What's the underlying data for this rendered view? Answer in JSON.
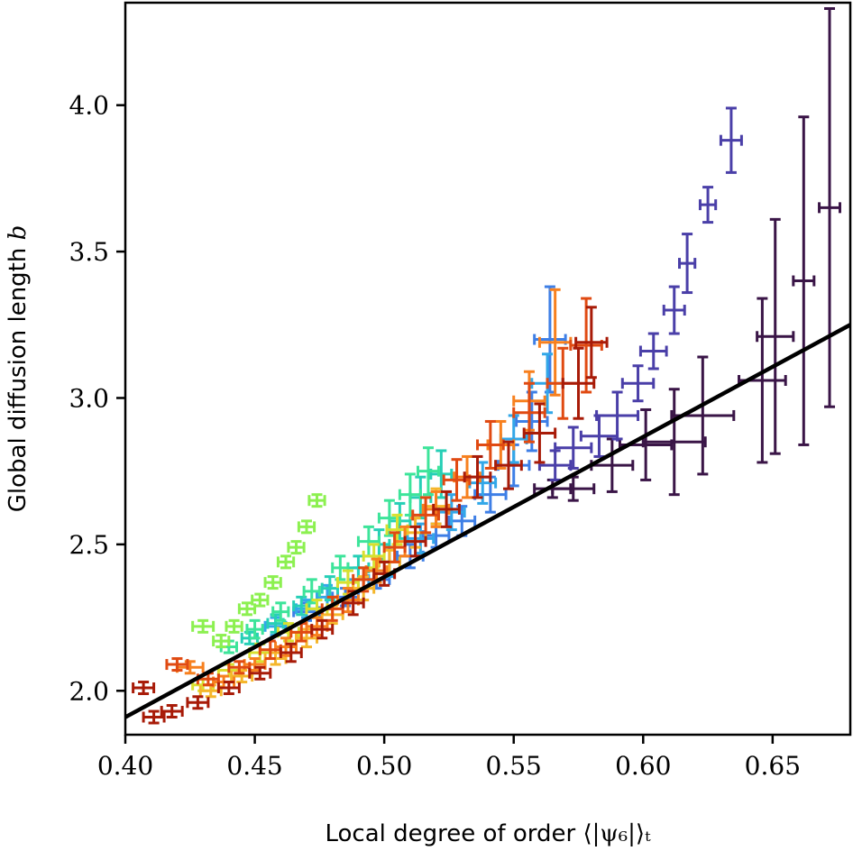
{
  "chart_data": {
    "type": "scatter",
    "title": "",
    "xlabel_text": "Local degree of order",
    "xlabel_math": "⟨|ψ₆|⟩ₜ",
    "ylabel_text": "Global diffusion length",
    "ylabel_math": "b",
    "xlim": [
      0.4,
      0.68
    ],
    "ylim": [
      1.85,
      4.35
    ],
    "xticks": [
      0.4,
      0.45,
      0.5,
      0.55,
      0.6,
      0.65
    ],
    "xtick_labels": [
      "0.40",
      "0.45",
      "0.50",
      "0.55",
      "0.60",
      "0.65"
    ],
    "yticks": [
      2.0,
      2.5,
      3.0,
      3.5,
      4.0
    ],
    "ytick_labels": [
      "2.0",
      "2.5",
      "3.0",
      "3.5",
      "4.0"
    ],
    "fit_line": {
      "x": [
        0.4,
        0.68
      ],
      "y": [
        1.91,
        3.25
      ],
      "color": "#000000"
    },
    "series": [
      {
        "name": "dark purple",
        "color": "#3a1547",
        "points": [
          [
            0.565,
            2.69,
            0.007,
            0.03
          ],
          [
            0.573,
            2.69,
            0.008,
            0.04
          ],
          [
            0.588,
            2.77,
            0.008,
            0.09
          ],
          [
            0.601,
            2.84,
            0.01,
            0.12
          ],
          [
            0.612,
            2.85,
            0.012,
            0.18
          ],
          [
            0.623,
            2.94,
            0.012,
            0.2
          ],
          [
            0.646,
            3.06,
            0.009,
            0.28
          ],
          [
            0.651,
            3.21,
            0.007,
            0.4
          ],
          [
            0.662,
            3.4,
            0.004,
            0.56
          ],
          [
            0.672,
            3.65,
            0.004,
            0.68
          ]
        ]
      },
      {
        "name": "indigo",
        "color": "#4a3fa8",
        "points": [
          [
            0.566,
            2.77,
            0.006,
            0.05
          ],
          [
            0.573,
            2.83,
            0.007,
            0.07
          ],
          [
            0.583,
            2.87,
            0.007,
            0.07
          ],
          [
            0.59,
            2.94,
            0.008,
            0.08
          ],
          [
            0.598,
            3.05,
            0.006,
            0.06
          ],
          [
            0.604,
            3.16,
            0.005,
            0.06
          ],
          [
            0.612,
            3.3,
            0.004,
            0.08
          ],
          [
            0.617,
            3.46,
            0.003,
            0.1
          ],
          [
            0.625,
            3.66,
            0.003,
            0.06
          ],
          [
            0.634,
            3.88,
            0.004,
            0.11
          ]
        ]
      },
      {
        "name": "blue",
        "color": "#3e7fe6",
        "points": [
          [
            0.47,
            2.27,
            0.005,
            0.03
          ],
          [
            0.485,
            2.32,
            0.005,
            0.03
          ],
          [
            0.497,
            2.38,
            0.005,
            0.03
          ],
          [
            0.51,
            2.46,
            0.005,
            0.04
          ],
          [
            0.52,
            2.53,
            0.005,
            0.04
          ],
          [
            0.53,
            2.58,
            0.005,
            0.05
          ],
          [
            0.541,
            2.67,
            0.006,
            0.06
          ],
          [
            0.55,
            2.77,
            0.006,
            0.07
          ],
          [
            0.557,
            2.92,
            0.006,
            0.1
          ],
          [
            0.564,
            3.2,
            0.006,
            0.18
          ]
        ]
      },
      {
        "name": "light blue",
        "color": "#32a7e8",
        "points": [
          [
            0.458,
            2.22,
            0.004,
            0.03
          ],
          [
            0.47,
            2.28,
            0.004,
            0.03
          ],
          [
            0.478,
            2.32,
            0.004,
            0.04
          ],
          [
            0.49,
            2.38,
            0.004,
            0.04
          ],
          [
            0.502,
            2.44,
            0.004,
            0.05
          ],
          [
            0.514,
            2.52,
            0.005,
            0.05
          ],
          [
            0.526,
            2.61,
            0.005,
            0.06
          ],
          [
            0.538,
            2.71,
            0.005,
            0.07
          ],
          [
            0.55,
            2.86,
            0.005,
            0.08
          ],
          [
            0.563,
            3.05,
            0.006,
            0.1
          ]
        ]
      },
      {
        "name": "teal",
        "color": "#26cfb6",
        "points": [
          [
            0.448,
            2.18,
            0.003,
            0.02
          ],
          [
            0.458,
            2.23,
            0.003,
            0.03
          ],
          [
            0.468,
            2.29,
            0.003,
            0.03
          ],
          [
            0.479,
            2.35,
            0.003,
            0.04
          ],
          [
            0.49,
            2.42,
            0.004,
            0.04
          ],
          [
            0.498,
            2.5,
            0.004,
            0.05
          ],
          [
            0.506,
            2.58,
            0.004,
            0.06
          ],
          [
            0.514,
            2.66,
            0.004,
            0.07
          ],
          [
            0.522,
            2.74,
            0.004,
            0.08
          ]
        ]
      },
      {
        "name": "green-cyan",
        "color": "#3de49a",
        "points": [
          [
            0.44,
            2.15,
            0.003,
            0.02
          ],
          [
            0.45,
            2.21,
            0.003,
            0.03
          ],
          [
            0.46,
            2.27,
            0.003,
            0.03
          ],
          [
            0.472,
            2.34,
            0.003,
            0.04
          ],
          [
            0.483,
            2.42,
            0.003,
            0.04
          ],
          [
            0.494,
            2.51,
            0.004,
            0.05
          ],
          [
            0.502,
            2.59,
            0.004,
            0.06
          ],
          [
            0.51,
            2.67,
            0.004,
            0.07
          ],
          [
            0.517,
            2.75,
            0.004,
            0.08
          ]
        ]
      },
      {
        "name": "lime",
        "color": "#8cf050",
        "points": [
          [
            0.43,
            2.22,
            0.004,
            0.02
          ],
          [
            0.437,
            2.17,
            0.003,
            0.02
          ],
          [
            0.442,
            2.22,
            0.003,
            0.02
          ],
          [
            0.447,
            2.28,
            0.003,
            0.02
          ],
          [
            0.452,
            2.31,
            0.003,
            0.02
          ],
          [
            0.457,
            2.37,
            0.003,
            0.02
          ],
          [
            0.462,
            2.44,
            0.003,
            0.02
          ],
          [
            0.466,
            2.49,
            0.003,
            0.02
          ],
          [
            0.47,
            2.56,
            0.003,
            0.02
          ],
          [
            0.474,
            2.65,
            0.003,
            0.02
          ]
        ]
      },
      {
        "name": "yellow",
        "color": "#d8e030",
        "points": [
          [
            0.43,
            2.02,
            0.004,
            0.02
          ],
          [
            0.44,
            2.07,
            0.004,
            0.02
          ],
          [
            0.452,
            2.13,
            0.004,
            0.03
          ],
          [
            0.463,
            2.2,
            0.004,
            0.03
          ],
          [
            0.474,
            2.28,
            0.004,
            0.03
          ],
          [
            0.486,
            2.37,
            0.004,
            0.04
          ],
          [
            0.496,
            2.46,
            0.004,
            0.04
          ],
          [
            0.505,
            2.55,
            0.004,
            0.05
          ]
        ]
      },
      {
        "name": "amber",
        "color": "#f5b62b",
        "points": [
          [
            0.433,
            2.0,
            0.004,
            0.02
          ],
          [
            0.445,
            2.05,
            0.004,
            0.02
          ],
          [
            0.458,
            2.11,
            0.004,
            0.02
          ],
          [
            0.47,
            2.18,
            0.004,
            0.03
          ],
          [
            0.48,
            2.26,
            0.004,
            0.03
          ],
          [
            0.492,
            2.35,
            0.004,
            0.04
          ],
          [
            0.502,
            2.44,
            0.004,
            0.04
          ],
          [
            0.512,
            2.54,
            0.004,
            0.05
          ],
          [
            0.52,
            2.63,
            0.004,
            0.06
          ]
        ]
      },
      {
        "name": "orange",
        "color": "#f7801f",
        "points": [
          [
            0.425,
            2.08,
            0.005,
            0.02
          ],
          [
            0.438,
            2.03,
            0.004,
            0.02
          ],
          [
            0.45,
            2.09,
            0.004,
            0.02
          ],
          [
            0.462,
            2.15,
            0.004,
            0.03
          ],
          [
            0.474,
            2.22,
            0.004,
            0.03
          ],
          [
            0.486,
            2.31,
            0.004,
            0.04
          ],
          [
            0.497,
            2.41,
            0.004,
            0.04
          ],
          [
            0.508,
            2.51,
            0.004,
            0.05
          ],
          [
            0.52,
            2.62,
            0.005,
            0.06
          ],
          [
            0.532,
            2.73,
            0.005,
            0.07
          ],
          [
            0.545,
            2.84,
            0.005,
            0.08
          ],
          [
            0.556,
            2.99,
            0.006,
            0.1
          ],
          [
            0.566,
            3.19,
            0.006,
            0.18
          ]
        ]
      },
      {
        "name": "red-orange",
        "color": "#e04a12",
        "points": [
          [
            0.42,
            2.09,
            0.004,
            0.02
          ],
          [
            0.432,
            2.04,
            0.004,
            0.02
          ],
          [
            0.444,
            2.08,
            0.004,
            0.02
          ],
          [
            0.456,
            2.14,
            0.004,
            0.03
          ],
          [
            0.468,
            2.2,
            0.004,
            0.03
          ],
          [
            0.48,
            2.28,
            0.004,
            0.04
          ],
          [
            0.492,
            2.38,
            0.004,
            0.04
          ],
          [
            0.504,
            2.49,
            0.004,
            0.05
          ],
          [
            0.516,
            2.6,
            0.005,
            0.06
          ],
          [
            0.528,
            2.72,
            0.005,
            0.07
          ],
          [
            0.541,
            2.84,
            0.005,
            0.08
          ],
          [
            0.556,
            2.95,
            0.006,
            0.1
          ],
          [
            0.569,
            3.05,
            0.006,
            0.12
          ],
          [
            0.578,
            3.18,
            0.006,
            0.16
          ]
        ]
      },
      {
        "name": "dark red",
        "color": "#a81b08",
        "points": [
          [
            0.407,
            2.01,
            0.004,
            0.02
          ],
          [
            0.411,
            1.91,
            0.004,
            0.02
          ],
          [
            0.418,
            1.93,
            0.004,
            0.02
          ],
          [
            0.428,
            1.96,
            0.004,
            0.02
          ],
          [
            0.44,
            2.01,
            0.004,
            0.02
          ],
          [
            0.452,
            2.06,
            0.004,
            0.02
          ],
          [
            0.464,
            2.13,
            0.004,
            0.03
          ],
          [
            0.476,
            2.21,
            0.004,
            0.03
          ],
          [
            0.488,
            2.3,
            0.004,
            0.04
          ],
          [
            0.5,
            2.4,
            0.004,
            0.04
          ],
          [
            0.512,
            2.51,
            0.004,
            0.05
          ],
          [
            0.524,
            2.62,
            0.005,
            0.06
          ],
          [
            0.536,
            2.73,
            0.005,
            0.07
          ],
          [
            0.548,
            2.77,
            0.005,
            0.08
          ],
          [
            0.56,
            2.88,
            0.006,
            0.1
          ],
          [
            0.575,
            3.05,
            0.006,
            0.12
          ],
          [
            0.58,
            3.19,
            0.006,
            0.12
          ]
        ]
      }
    ]
  }
}
